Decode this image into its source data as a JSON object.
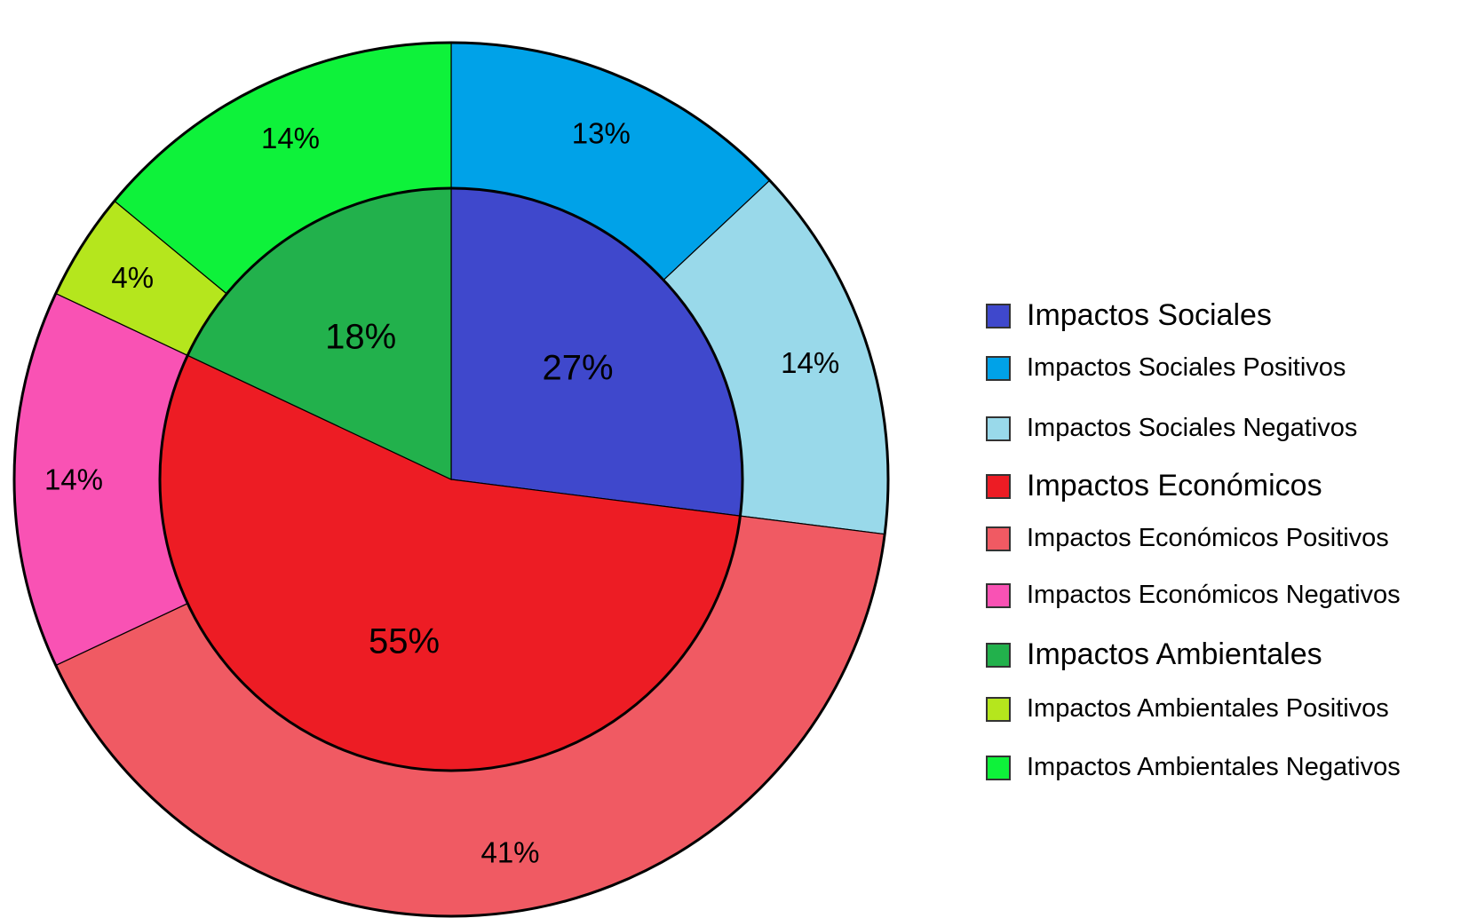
{
  "chart_data": {
    "type": "pie",
    "variant": "nested-donut",
    "title": "",
    "inner_ring": [
      {
        "name": "Impactos Sociales",
        "value": 27,
        "label": "27%",
        "color": "#3f48cc"
      },
      {
        "name": "Impactos Económicos",
        "value": 55,
        "label": "55%",
        "color": "#ed1c24"
      },
      {
        "name": "Impactos Ambientales",
        "value": 18,
        "label": "18%",
        "color": "#22b14c"
      }
    ],
    "outer_ring": [
      {
        "name": "Impactos Sociales Positivos",
        "value": 13,
        "label": "13%",
        "color": "#00a2e8"
      },
      {
        "name": "Impactos Sociales Negativos",
        "value": 14,
        "label": "14%",
        "color": "#99d9ea"
      },
      {
        "name": "Impactos Económicos Positivos",
        "value": 41,
        "label": "41%",
        "color": "#f05a63"
      },
      {
        "name": "Impactos Económicos Negativos",
        "value": 14,
        "label": "14%",
        "color": "#f952b4"
      },
      {
        "name": "Impactos Ambientales Positivos",
        "value": 4,
        "label": "4%",
        "color": "#b5e61d"
      },
      {
        "name": "Impactos Ambientales Negativos",
        "value": 14,
        "label": "14%",
        "color": "#0ef23a"
      }
    ],
    "start_angle_deg": 0,
    "direction": "clockwise",
    "legend_position": "right"
  },
  "legend": [
    {
      "label": "Impactos Sociales",
      "color": "#3f48cc",
      "level": "group"
    },
    {
      "label": "Impactos Sociales Positivos",
      "color": "#00a2e8",
      "level": "sub"
    },
    {
      "label": "Impactos Sociales Negativos",
      "color": "#99d9ea",
      "level": "sub"
    },
    {
      "label": "Impactos Económicos",
      "color": "#ed1c24",
      "level": "group"
    },
    {
      "label": "Impactos Económicos Positivos",
      "color": "#f05a63",
      "level": "sub"
    },
    {
      "label": "Impactos Económicos Negativos",
      "color": "#f952b4",
      "level": "sub"
    },
    {
      "label": "Impactos Ambientales",
      "color": "#22b14c",
      "level": "group"
    },
    {
      "label": "Impactos Ambientales Positivos",
      "color": "#b5e61d",
      "level": "sub"
    },
    {
      "label": "Impactos Ambientales Negativos",
      "color": "#0ef23a",
      "level": "sub"
    }
  ]
}
